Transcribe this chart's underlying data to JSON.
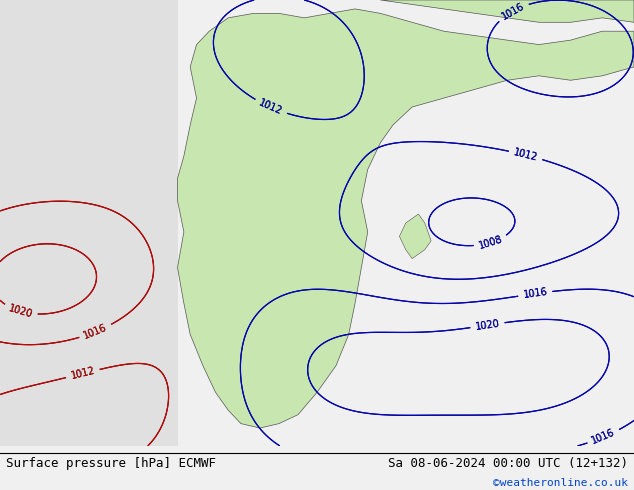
{
  "title_left": "Surface pressure [hPa] ECMWF",
  "title_right": "Sa 08-06-2024 00:00 UTC (12+132)",
  "copyright": "©weatheronline.co.uk",
  "bg_color": "#e8e8e8",
  "land_color": "#c8e6b0",
  "water_color": "#ffffff",
  "black_contour_color": "#000000",
  "red_contour_color": "#cc0000",
  "blue_contour_color": "#0000cc",
  "label_fontsize": 7,
  "footer_fontsize": 9,
  "copyright_fontsize": 8,
  "copyright_color": "#0044cc"
}
